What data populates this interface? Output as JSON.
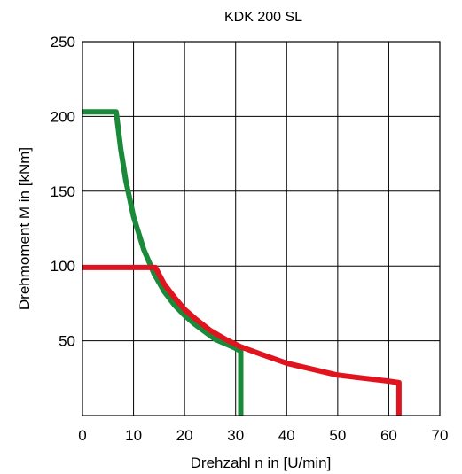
{
  "chart_data": {
    "type": "line",
    "title": "KDK 200 SL",
    "xlabel": "Drehzahl n in [U/min]",
    "ylabel": "Drehmoment M in [kNm]",
    "xlim": [
      0,
      70
    ],
    "ylim": [
      0,
      250
    ],
    "xticks": [
      0,
      10,
      20,
      30,
      40,
      50,
      60,
      70
    ],
    "yticks": [
      50,
      100,
      150,
      200,
      250
    ],
    "grid": true,
    "series": [
      {
        "color": "#1a8a3a",
        "x": [
          0,
          6.6,
          7.5,
          8.5,
          10,
          12,
          14,
          16,
          18,
          20,
          22,
          24,
          26,
          28,
          30,
          31,
          31
        ],
        "y": [
          203,
          203,
          178,
          157,
          133,
          111,
          95,
          83,
          74,
          67,
          61,
          56,
          51,
          48,
          45,
          43,
          0
        ]
      },
      {
        "color": "#e0141e",
        "x": [
          0,
          14.3,
          16,
          18,
          20,
          22,
          25,
          28,
          31,
          35,
          40,
          45,
          50,
          55,
          60,
          62,
          62
        ],
        "y": [
          99,
          99,
          88,
          79,
          71,
          65,
          57,
          51,
          46,
          41,
          35,
          31,
          27,
          25,
          23,
          22,
          0
        ]
      }
    ]
  }
}
